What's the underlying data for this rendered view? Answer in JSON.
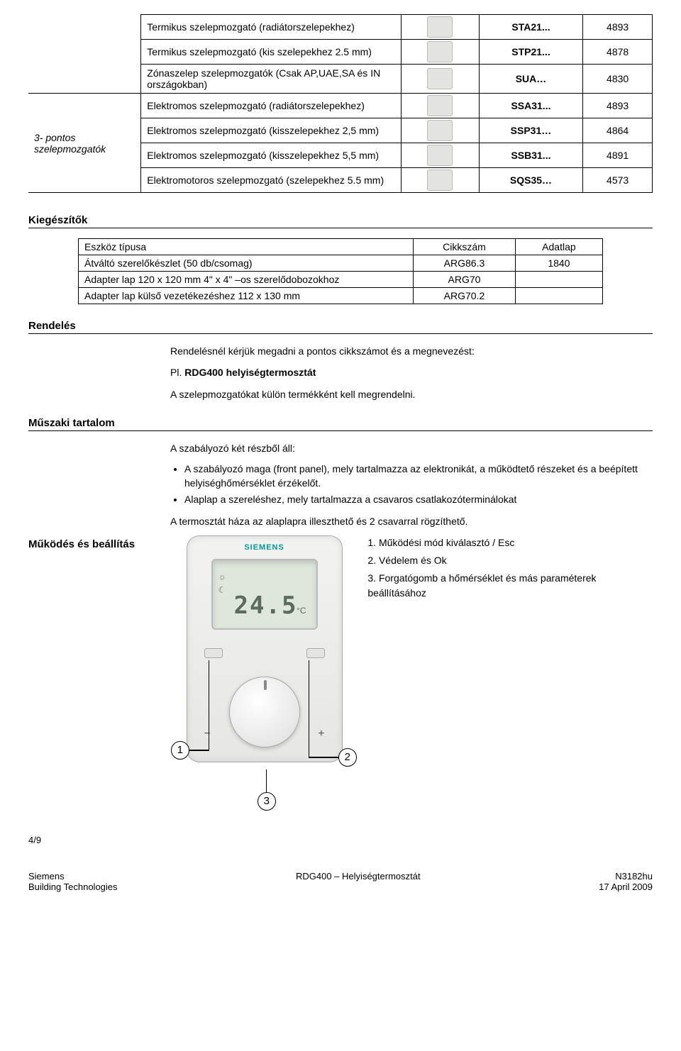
{
  "actuator_table": {
    "category_label": "3- pontos szelepmozgatók",
    "rows": [
      {
        "desc": "Termikus szelepmozgató (radiátorszelepekhez)",
        "code": "STA21...",
        "sheet": "4893",
        "has_cat": false
      },
      {
        "desc": "Termikus szelepmozgató (kis szelepekhez 2.5 mm)",
        "code": "STP21...",
        "sheet": "4878",
        "has_cat": false
      },
      {
        "desc": "Zónaszelep szelepmozgatók (Csak AP,UAE,SA és IN országokban)",
        "code": "SUA…",
        "sheet": "4830",
        "has_cat": false
      },
      {
        "desc": "Elektromos szelepmozgató (radiátorszelepekhez)",
        "code": "SSA31...",
        "sheet": "4893",
        "has_cat": true
      },
      {
        "desc": "Elektromos szelepmozgató (kisszelepekhez 2,5 mm)",
        "code": "SSP31…",
        "sheet": "4864",
        "has_cat": false
      },
      {
        "desc": "Elektromos szelepmozgató (kisszelepekhez 5,5 mm)",
        "code": "SSB31...",
        "sheet": "4891",
        "has_cat": false
      },
      {
        "desc": "Elektromotoros szelepmozgató (szelepekhez 5.5 mm)",
        "code": "SQS35…",
        "sheet": "4573",
        "has_cat": false
      }
    ]
  },
  "accessories": {
    "heading": "Kiegészítők",
    "columns": [
      "Eszköz típusa",
      "Cikkszám",
      "Adatlap"
    ],
    "rows": [
      [
        "Átváltó szerelőkészlet (50 db/csomag)",
        "ARG86.3",
        "1840"
      ],
      [
        "Adapter lap 120 x 120 mm 4\" x 4\" –os szerelődobozokhoz",
        "ARG70",
        ""
      ],
      [
        "Adapter lap külső vezetékezéshez 112 x 130 mm",
        "ARG70.2",
        ""
      ]
    ]
  },
  "ordering": {
    "heading": "Rendelés",
    "line1": "Rendelésnél kérjük megadni a pontos cikkszámot és a megnevezést:",
    "line2_prefix": "Pl. ",
    "line2_bold": "RDG400 helyiségtermosztát",
    "line3": "A szelepmozgatókat külön termékként kell megrendelni."
  },
  "tech": {
    "heading": "Műszaki tartalom",
    "intro": "A szabályozó két részből áll:",
    "bullets": [
      "A szabályozó maga (front panel), mely tartalmazza az elektronikát, a működtető részeket és a beépített helyiséghőmérséklet érzékelőt.",
      "Alaplap a szereléshez, mely tartalmazza a csavaros csatlakozóterminálokat"
    ],
    "post": "A termosztát háza az alaplapra illeszthető és 2 csavarral rögzíthető."
  },
  "operation": {
    "heading": "Működés és beállítás",
    "device_brand": "SIEMENS",
    "device_temp": "24.5",
    "device_unit": "°C",
    "items": [
      "1. Működési mód kiválasztó / Esc",
      "2. Védelem és Ok",
      "3. Forgatógomb a hőmérséklet és más paraméterek beállításához"
    ],
    "callouts": {
      "one": "1",
      "two": "2",
      "three": "3"
    }
  },
  "footer": {
    "page": "4/9",
    "left1": "Siemens",
    "left2": "Building Technologies",
    "mid": "RDG400 – Helyiségtermosztát",
    "right1": "N3182hu",
    "right2": "17 April 2009"
  }
}
